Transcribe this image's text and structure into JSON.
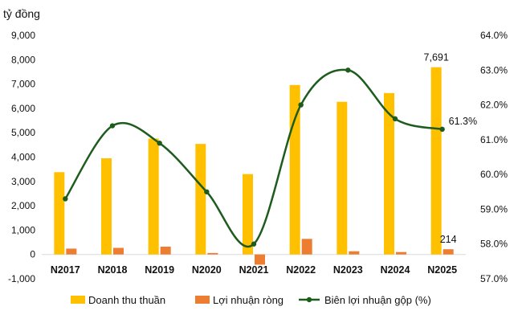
{
  "chart_data": {
    "type": "bar",
    "unit_label": "tỷ đồng",
    "categories": [
      "N2017",
      "N2018",
      "N2019",
      "N2020",
      "N2021",
      "N2022",
      "N2023",
      "N2024",
      "N2025"
    ],
    "series": [
      {
        "name": "Doanh thu thuần",
        "kind": "bar",
        "axis": "left",
        "color": "#FFC000",
        "values": [
          3380,
          3950,
          4760,
          4540,
          3300,
          6960,
          6270,
          6630,
          7691
        ]
      },
      {
        "name": "Lợi nhuận ròng",
        "kind": "bar",
        "axis": "left",
        "color": "#ED7D31",
        "values": [
          240,
          270,
          320,
          60,
          -420,
          640,
          130,
          100,
          214
        ]
      },
      {
        "name": "Biên lợi nhuận gộp (%)",
        "kind": "line",
        "axis": "right",
        "color": "#1E5C1E",
        "values": [
          59.3,
          61.4,
          60.9,
          59.5,
          58.0,
          62.0,
          63.0,
          61.6,
          61.3
        ]
      }
    ],
    "y_left": {
      "min": -1000,
      "max": 9000,
      "step": 1000,
      "tick_labels": [
        "-1,000",
        "0",
        "1,000",
        "2,000",
        "3,000",
        "4,000",
        "5,000",
        "6,000",
        "7,000",
        "8,000",
        "9,000"
      ]
    },
    "y_right": {
      "min": 57,
      "max": 64,
      "step": 1,
      "tick_labels": [
        "57.0%",
        "58.0%",
        "59.0%",
        "60.0%",
        "61.0%",
        "62.0%",
        "63.0%",
        "64.0%"
      ]
    },
    "data_labels": [
      {
        "series": 0,
        "index": 8,
        "text": "7,691"
      },
      {
        "series": 1,
        "index": 8,
        "text": "214"
      },
      {
        "series": 2,
        "index": 8,
        "text": "61.3%"
      }
    ],
    "legend_position": "bottom",
    "grid": false
  }
}
